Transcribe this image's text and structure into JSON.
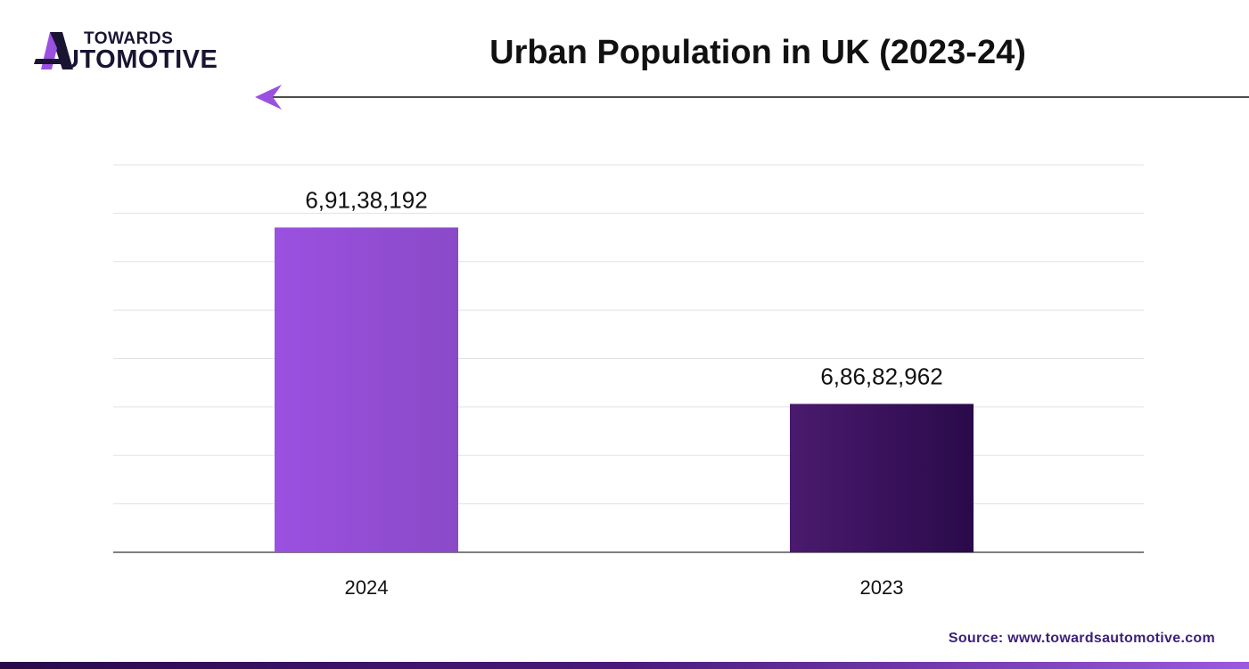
{
  "brand": {
    "line1": "TOWARDS",
    "line2": "UTOMOTIVE"
  },
  "colors": {
    "accent": "#9b51e0",
    "bar_2024_start": "#9b51e0",
    "bar_2024_end": "#8a4ac8",
    "bar_2023_start": "#4a1a6e",
    "bar_2023_end": "#2a0a4a"
  },
  "chart_data": {
    "type": "bar",
    "title": "Urban Population in UK (2023-24)",
    "categories": [
      "2024",
      "2023"
    ],
    "values": [
      69138192,
      68682962
    ],
    "value_labels": [
      "6,91,38,192",
      "6,86,82,962"
    ],
    "xlabel": "",
    "ylabel": "",
    "ylim": [
      68300000,
      69300000
    ],
    "grid": true,
    "legend": "none"
  },
  "source": "Source: www.towardsautomotive.com"
}
